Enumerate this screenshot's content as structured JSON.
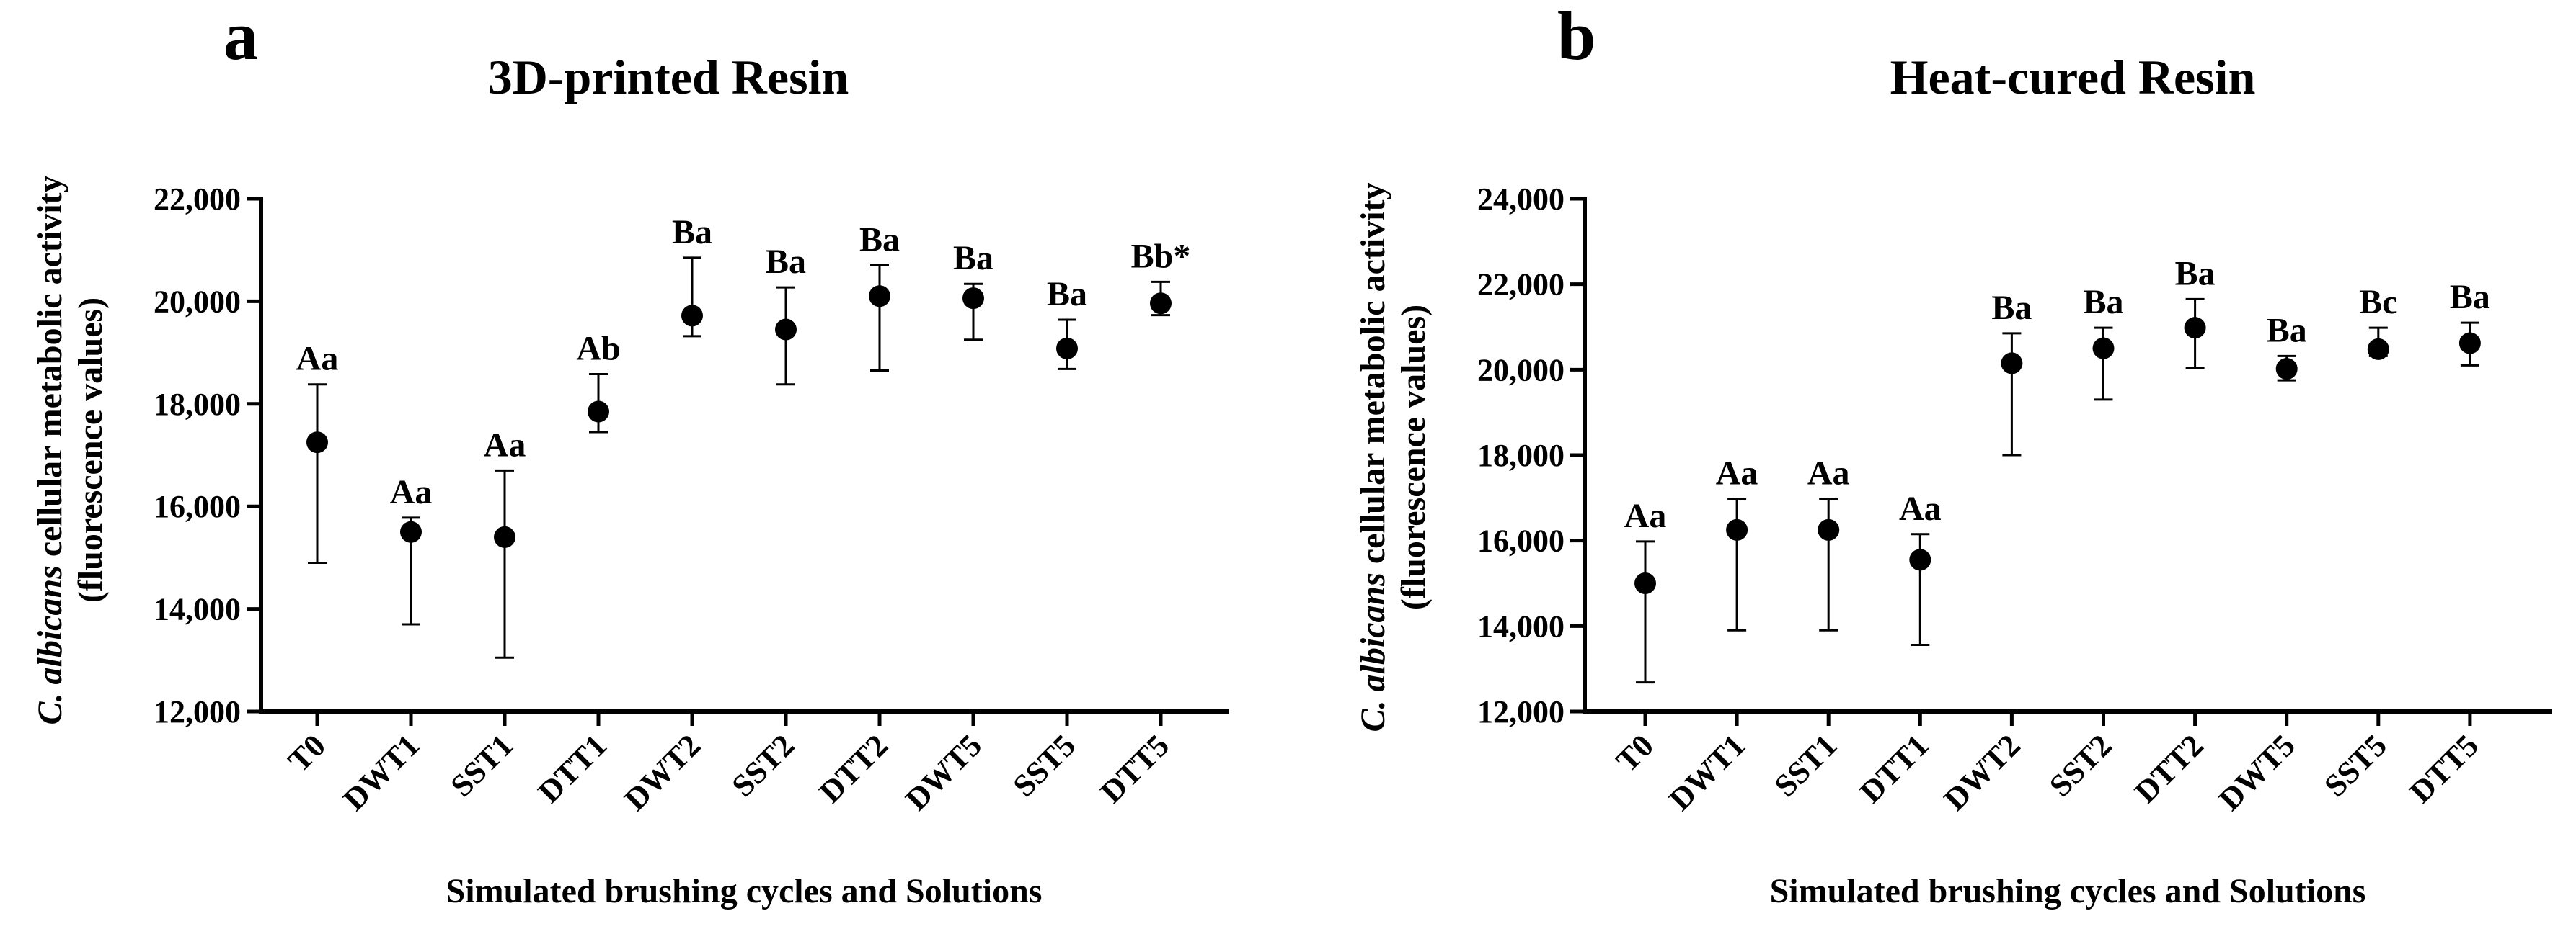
{
  "chart_data": [
    {
      "type": "scatter",
      "panel": "a",
      "title": "3D-printed Resin",
      "xlabel": "Simulated brushing cycles and Solutions",
      "ylabel": {
        "italic": "C. albicans",
        "rest": " cellular metabolic activity",
        "line2": "(fluorescence values)"
      },
      "ylim": [
        12000,
        22000
      ],
      "yticks": [
        12000,
        14000,
        16000,
        18000,
        20000,
        22000
      ],
      "ytick_labels": [
        "12,000",
        "14,000",
        "16,000",
        "18,000",
        "20,000",
        "22,000"
      ],
      "categories": [
        "T0",
        "DWT1",
        "SST1",
        "DTT1",
        "DWT2",
        "SST2",
        "DTT2",
        "DWT5",
        "SST5",
        "DTT5"
      ],
      "values": [
        17250,
        15500,
        15400,
        17850,
        19720,
        19450,
        20100,
        20060,
        19080,
        19960
      ],
      "err_low": [
        14900,
        13700,
        13050,
        17450,
        19320,
        18380,
        18650,
        19250,
        18680,
        19730
      ],
      "err_high": [
        18380,
        15780,
        16700,
        18580,
        20850,
        20270,
        20700,
        20340,
        19640,
        20380
      ],
      "labels": [
        "Aa",
        "Aa",
        "Aa",
        "Ab",
        "Ba",
        "Ba",
        "Ba",
        "Ba",
        "Ba",
        "Bb*"
      ]
    },
    {
      "type": "scatter",
      "panel": "b",
      "title": "Heat-cured Resin",
      "xlabel": "Simulated brushing cycles and Solutions",
      "ylabel": {
        "italic": "C. albicans",
        "rest": " cellular metabolic activity",
        "line2": "(fluorescence values)"
      },
      "ylim": [
        12000,
        24000
      ],
      "yticks": [
        12000,
        14000,
        16000,
        18000,
        20000,
        22000,
        24000
      ],
      "ytick_labels": [
        "12,000",
        "14,000",
        "16,000",
        "18,000",
        "20,000",
        "22,000",
        "24,000"
      ],
      "categories": [
        "T0",
        "DWT1",
        "SST1",
        "DTT1",
        "DWT2",
        "SST2",
        "DTT2",
        "DWT5",
        "SST5",
        "DTT5"
      ],
      "values": [
        15000,
        16250,
        16250,
        15550,
        20150,
        20500,
        20980,
        20020,
        20480,
        20620
      ],
      "err_low": [
        12680,
        13900,
        13900,
        13560,
        18000,
        19300,
        20030,
        19750,
        20320,
        20100
      ],
      "err_high": [
        15980,
        16980,
        16980,
        16150,
        20850,
        20980,
        21650,
        20320,
        20980,
        21100
      ],
      "labels": [
        "Aa",
        "Aa",
        "Aa",
        "Aa",
        "Ba",
        "Ba",
        "Ba",
        "Ba",
        "Bc",
        "Ba"
      ]
    }
  ]
}
